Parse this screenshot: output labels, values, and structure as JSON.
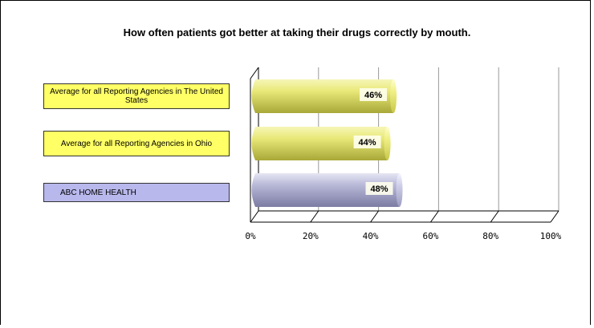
{
  "chart_data": {
    "type": "bar",
    "orientation": "horizontal",
    "title": "How often patients got better at taking their drugs correctly by mouth.",
    "categories": [
      "Average for all Reporting Agencies in The United States",
      "Average for all Reporting Agencies in Ohio",
      "ABC HOME HEALTH"
    ],
    "values": [
      46,
      44,
      48
    ],
    "value_labels": [
      "46%",
      "44%",
      "48%"
    ],
    "xlim": [
      0,
      100
    ],
    "xticks": [
      "0%",
      "20%",
      "40%",
      "60%",
      "80%",
      "100%"
    ],
    "grid": true,
    "colors": {
      "average_bar": "#e8e878",
      "agency_bar": "#b8b8d8",
      "average_label_bg": "#ffff66",
      "agency_label_bg": "#b8b8ec"
    }
  }
}
